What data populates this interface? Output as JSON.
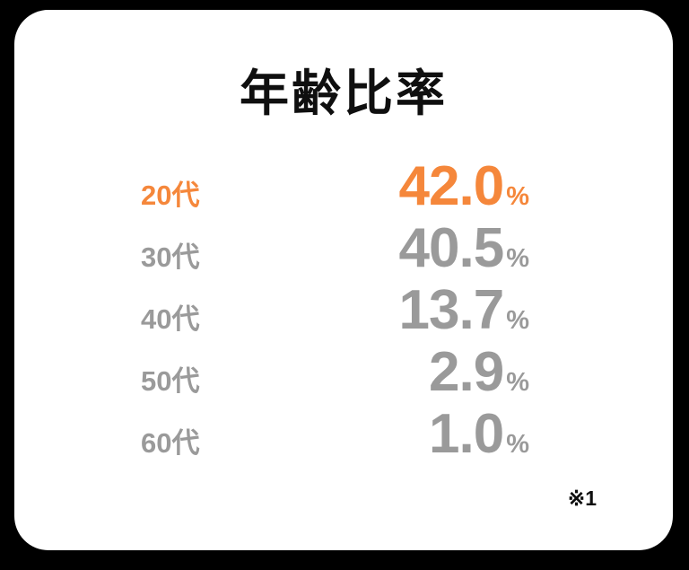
{
  "title": "年齢比率",
  "footnote": "※1",
  "colors": {
    "page_background": "#000000",
    "card_background": "#ffffff",
    "highlight": "#f5873b",
    "muted": "#9a9a9a",
    "text": "#0f0f0f"
  },
  "rows": [
    {
      "label": "20代",
      "value": "42.0",
      "unit": "%",
      "highlighted": true
    },
    {
      "label": "30代",
      "value": "40.5",
      "unit": "%",
      "highlighted": false
    },
    {
      "label": "40代",
      "value": "13.7",
      "unit": "%",
      "highlighted": false
    },
    {
      "label": "50代",
      "value": "2.9",
      "unit": "%",
      "highlighted": false
    },
    {
      "label": "60代",
      "value": "1.0",
      "unit": "%",
      "highlighted": false
    }
  ],
  "chart_data": {
    "type": "table",
    "title": "年齢比率",
    "categories": [
      "20代",
      "30代",
      "40代",
      "50代",
      "60代"
    ],
    "values": [
      42.0,
      40.5,
      13.7,
      2.9,
      1.0
    ],
    "unit": "%",
    "highlighted_category": "20代",
    "annotations": [
      "※1"
    ],
    "legend_position": "none",
    "grid": false
  }
}
